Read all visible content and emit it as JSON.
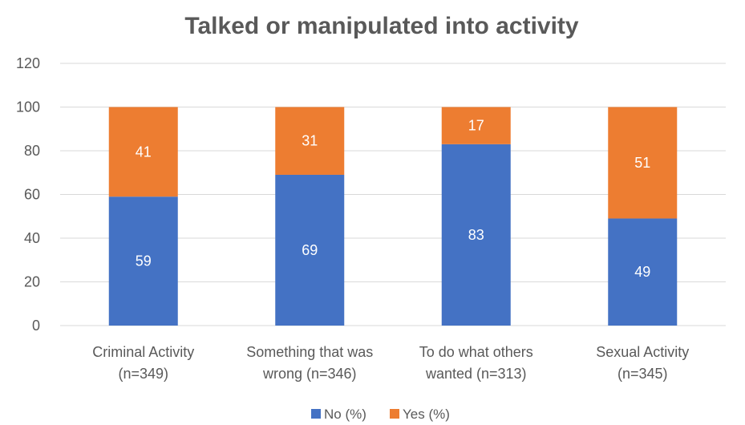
{
  "chart_data": {
    "type": "bar",
    "stacked": true,
    "title": "Talked or manipulated into activity",
    "categories": [
      [
        "Criminal Activity",
        "(n=349)"
      ],
      [
        "Something that was",
        "wrong (n=346)"
      ],
      [
        "To do what others",
        "wanted (n=313)"
      ],
      [
        "Sexual Activity",
        "(n=345)"
      ]
    ],
    "series": [
      {
        "name": "No (%)",
        "color": "#4472C4",
        "values": [
          59,
          69,
          83,
          49
        ]
      },
      {
        "name": "Yes (%)",
        "color": "#ED7D31",
        "values": [
          41,
          31,
          17,
          51
        ]
      }
    ],
    "ylim": [
      0,
      120
    ],
    "yticks": [
      0,
      20,
      40,
      60,
      80,
      100,
      120
    ],
    "grid": true,
    "legend_position": "bottom"
  }
}
